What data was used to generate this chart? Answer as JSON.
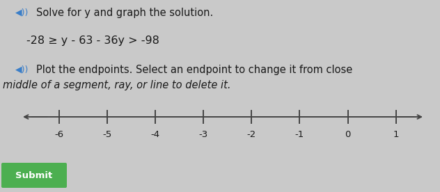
{
  "title_line1": "Solve for y and graph the solution.",
  "equation": "⁻28 ≥ y − 63 − 36y > ⁻98",
  "equation_plain": "-28 ≥ y - 63 - 36y > -98",
  "instruction1": "Plot the endpoints. Select an endpoint to change it from close",
  "instruction2": "middle of a segment, ray, or line to delete it.",
  "submit_label": "Submit",
  "number_line": {
    "x_min": -6.8,
    "x_max": 1.6,
    "ticks": [
      -6,
      -5,
      -4,
      -3,
      -2,
      -1,
      0,
      1
    ],
    "tick_labels": [
      "-6",
      "-5",
      "-4",
      "-3",
      "-2",
      "-1",
      "0",
      "1"
    ]
  },
  "background_color": "#c9c9c9",
  "text_color": "#1a1a1a",
  "number_line_color": "#444444",
  "submit_button_color": "#4caf50",
  "submit_text_color": "#ffffff",
  "speaker_icon_color": "#3a7ec8",
  "title_fontsize": 10.5,
  "equation_fontsize": 11.5,
  "instruction_fontsize": 10.5,
  "tick_label_fontsize": 9.5
}
